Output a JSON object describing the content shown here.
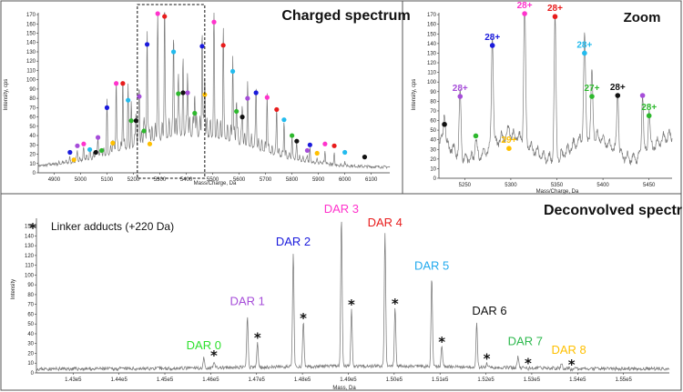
{
  "chart_data": [
    {
      "id": "charged",
      "type": "line",
      "title": "Charged spectrum",
      "xlabel": "Mass/Charge, Da",
      "ylabel": "Intensity, cps",
      "xlim": [
        4840,
        6170
      ],
      "ylim": [
        0,
        172
      ],
      "xticks": [
        4900,
        5000,
        5100,
        5200,
        5300,
        5400,
        5500,
        5600,
        5700,
        5800,
        5900,
        6000,
        6100
      ],
      "yticks": [
        0,
        10,
        20,
        30,
        40,
        50,
        60,
        70,
        80,
        90,
        100,
        110,
        120,
        130,
        140,
        150,
        160,
        170
      ],
      "zoom_box": [
        5215,
        5470
      ],
      "markers": [
        {
          "x": 4960,
          "y": 22,
          "color": "#1a1adc"
        },
        {
          "x": 4975,
          "y": 14,
          "color": "#ffc000"
        },
        {
          "x": 4988,
          "y": 29,
          "color": "#a64dd9"
        },
        {
          "x": 5012,
          "y": 31,
          "color": "#ff33cc"
        },
        {
          "x": 5035,
          "y": 25,
          "color": "#22bbee"
        },
        {
          "x": 5058,
          "y": 22,
          "color": "#111111"
        },
        {
          "x": 5066,
          "y": 38,
          "color": "#a64dd9"
        },
        {
          "x": 5080,
          "y": 24,
          "color": "#2db82d"
        },
        {
          "x": 5100,
          "y": 70,
          "color": "#1a1adc"
        },
        {
          "x": 5122,
          "y": 32,
          "color": "#ffc000"
        },
        {
          "x": 5135,
          "y": 96,
          "color": "#ff33cc"
        },
        {
          "x": 5160,
          "y": 96,
          "color": "#e81c1c"
        },
        {
          "x": 5180,
          "y": 78,
          "color": "#22bbee"
        },
        {
          "x": 5192,
          "y": 56,
          "color": "#2db82d"
        },
        {
          "x": 5210,
          "y": 56,
          "color": "#111111"
        },
        {
          "x": 5222,
          "y": 82,
          "color": "#a64dd9"
        },
        {
          "x": 5240,
          "y": 45,
          "color": "#2db82d"
        },
        {
          "x": 5252,
          "y": 138,
          "color": "#1a1adc"
        },
        {
          "x": 5262,
          "y": 31,
          "color": "#ffc000"
        },
        {
          "x": 5292,
          "y": 171,
          "color": "#ff33cc"
        },
        {
          "x": 5318,
          "y": 168,
          "color": "#e81c1c"
        },
        {
          "x": 5352,
          "y": 130,
          "color": "#22bbee"
        },
        {
          "x": 5370,
          "y": 85,
          "color": "#2db82d"
        },
        {
          "x": 5388,
          "y": 86,
          "color": "#111111"
        },
        {
          "x": 5405,
          "y": 86,
          "color": "#a64dd9"
        },
        {
          "x": 5432,
          "y": 64,
          "color": "#2db82d"
        },
        {
          "x": 5460,
          "y": 136,
          "color": "#1a1adc"
        },
        {
          "x": 5470,
          "y": 84,
          "color": "#ffc000"
        },
        {
          "x": 5505,
          "y": 162,
          "color": "#ff33cc"
        },
        {
          "x": 5540,
          "y": 137,
          "color": "#e81c1c"
        },
        {
          "x": 5576,
          "y": 109,
          "color": "#22bbee"
        },
        {
          "x": 5590,
          "y": 66,
          "color": "#2db82d"
        },
        {
          "x": 5612,
          "y": 60,
          "color": "#111111"
        },
        {
          "x": 5632,
          "y": 80,
          "color": "#a64dd9"
        },
        {
          "x": 5664,
          "y": 86,
          "color": "#1a1adc"
        },
        {
          "x": 5706,
          "y": 81,
          "color": "#ff33cc"
        },
        {
          "x": 5742,
          "y": 68,
          "color": "#e81c1c"
        },
        {
          "x": 5770,
          "y": 57,
          "color": "#22bbee"
        },
        {
          "x": 5800,
          "y": 40,
          "color": "#2db82d"
        },
        {
          "x": 5818,
          "y": 34,
          "color": "#111111"
        },
        {
          "x": 5858,
          "y": 24,
          "color": "#a64dd9"
        },
        {
          "x": 5868,
          "y": 30,
          "color": "#1a1adc"
        },
        {
          "x": 5895,
          "y": 21,
          "color": "#ffc000"
        },
        {
          "x": 5925,
          "y": 31,
          "color": "#ff33cc"
        },
        {
          "x": 5960,
          "y": 29,
          "color": "#e81c1c"
        },
        {
          "x": 6000,
          "y": 22,
          "color": "#22bbee"
        },
        {
          "x": 6075,
          "y": 17,
          "color": "#111111"
        }
      ]
    },
    {
      "id": "zoom",
      "type": "line",
      "title": "Zoom",
      "xlabel": "Mass/Charge, Da",
      "ylabel": "Intensity, cps",
      "xlim": [
        5222,
        5475
      ],
      "ylim": [
        0,
        172
      ],
      "xticks": [
        5250,
        5300,
        5350,
        5400,
        5450
      ],
      "yticks": [
        0,
        10,
        20,
        30,
        40,
        50,
        60,
        70,
        80,
        90,
        100,
        110,
        120,
        130,
        140,
        150,
        160,
        170
      ],
      "markers": [
        {
          "x": 5228,
          "y": 56,
          "color": "#111111",
          "label": ""
        },
        {
          "x": 5245,
          "y": 85,
          "color": "#a64dd9",
          "label": "28+"
        },
        {
          "x": 5262,
          "y": 44,
          "color": "#2db82d",
          "label": ""
        },
        {
          "x": 5280,
          "y": 138,
          "color": "#1a1adc",
          "label": "28+"
        },
        {
          "x": 5298,
          "y": 31,
          "color": "#ffc000",
          "label": "29+"
        },
        {
          "x": 5315,
          "y": 171,
          "color": "#ff33cc",
          "label": "28+"
        },
        {
          "x": 5348,
          "y": 168,
          "color": "#e81c1c",
          "label": "28+"
        },
        {
          "x": 5380,
          "y": 130,
          "color": "#22bbee",
          "label": "28+"
        },
        {
          "x": 5388,
          "y": 85,
          "color": "#2db82d",
          "label": "27+"
        },
        {
          "x": 5416,
          "y": 86,
          "color": "#111111",
          "label": "28+"
        },
        {
          "x": 5443,
          "y": 86,
          "color": "#a64dd9",
          "label": ""
        },
        {
          "x": 5450,
          "y": 65,
          "color": "#2db82d",
          "label": "28+"
        }
      ]
    },
    {
      "id": "deconvolved",
      "type": "line",
      "title": "Deconvolved spectrum",
      "xlabel": "Mass, Da",
      "ylabel": "Intensity",
      "xlim": [
        142200,
        156000
      ],
      "ylim": [
        0,
        158
      ],
      "xticks": [
        143000,
        144000,
        145000,
        146000,
        147000,
        148000,
        149000,
        150000,
        151000,
        152000,
        153000,
        154000,
        155000
      ],
      "xtick_labels": [
        "1.43e5",
        "1.44e5",
        "1.45e5",
        "1.46e5",
        "1.47e5",
        "1.48e5",
        "1.49e5",
        "1.50e5",
        "1.51e5",
        "1.52e5",
        "1.53e5",
        "1.54e5",
        "1.55e5"
      ],
      "yticks": [
        0,
        10,
        20,
        30,
        40,
        50,
        60,
        70,
        80,
        90,
        100,
        110,
        120,
        130,
        140,
        150
      ],
      "legend_text": "Linker adducts (+220 Da)",
      "legend_symbol": "*",
      "peaks": [
        {
          "label": "DAR 0",
          "x": 145850,
          "y": 15,
          "color": "#2de02d"
        },
        {
          "label": "DAR 1",
          "x": 146800,
          "y": 58,
          "color": "#a64dd9"
        },
        {
          "label": "DAR 2",
          "x": 147800,
          "y": 121,
          "color": "#1a1adc"
        },
        {
          "label": "DAR 3",
          "x": 148850,
          "y": 156,
          "color": "#ff33cc"
        },
        {
          "label": "DAR 4",
          "x": 149800,
          "y": 142,
          "color": "#e81c1c"
        },
        {
          "label": "DAR 5",
          "x": 150820,
          "y": 96,
          "color": "#22aaee"
        },
        {
          "label": "DAR 6",
          "x": 151800,
          "y": 50,
          "color": "#111111"
        },
        {
          "label": "DAR 7",
          "x": 152700,
          "y": 17,
          "color": "#2db84d"
        },
        {
          "label": "DAR 8",
          "x": 153650,
          "y": 10,
          "color": "#ffc000"
        }
      ],
      "adducts": [
        {
          "x": 146070,
          "y": 12
        },
        {
          "x": 147020,
          "y": 30
        },
        {
          "x": 148020,
          "y": 50
        },
        {
          "x": 149070,
          "y": 64
        },
        {
          "x": 150020,
          "y": 65
        },
        {
          "x": 151040,
          "y": 26
        },
        {
          "x": 152020,
          "y": 9
        },
        {
          "x": 152920,
          "y": 4
        },
        {
          "x": 153870,
          "y": 3
        }
      ]
    }
  ]
}
